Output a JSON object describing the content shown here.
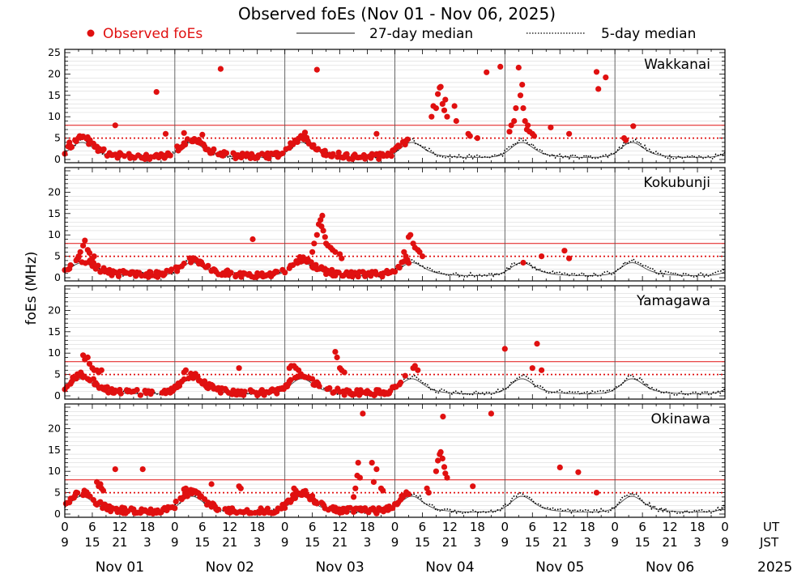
{
  "chart_data": {
    "type": "scatter",
    "title": "Observed foEs (Nov 01 - Nov 06, 2025)",
    "ylabel": "foEs (MHz)",
    "ylim": [
      0,
      25
    ],
    "yticks": [
      0,
      5,
      10,
      15,
      20,
      25
    ],
    "year": "2025",
    "legend": {
      "observed": "Observed foEs",
      "median27": "27-day median",
      "median5": "5-day median"
    },
    "x_axis": {
      "ut_label": "UT",
      "jst_label": "JST",
      "ut_hours": [
        "0",
        "6",
        "12",
        "18"
      ],
      "jst_hours": [
        "9",
        "15",
        "21",
        "3"
      ],
      "end_ut": "0",
      "end_jst": "9",
      "days": [
        "Nov 01",
        "Nov 02",
        "Nov 03",
        "Nov 04",
        "Nov 05",
        "Nov 06"
      ]
    },
    "reference_lines": {
      "red_solid": 8,
      "red_dotted": 5
    },
    "colors": {
      "observed": "#e01010",
      "reference": "#e01010",
      "median": "#000000",
      "grid": "#d9d9d9"
    },
    "stations": [
      {
        "name": "Wakkanai",
        "observed_until_hour": 75,
        "base_level": 2.6,
        "events": [
          {
            "hour": 1,
            "values": [
              4.0,
              3.0
            ]
          },
          {
            "hour": 5,
            "values": [
              5.2
            ]
          },
          {
            "hour": 11,
            "values": [
              8.0
            ]
          },
          {
            "hour": 20,
            "values": [
              15.8
            ]
          },
          {
            "hour": 22,
            "values": [
              6.0
            ]
          },
          {
            "hour": 26,
            "values": [
              6.2
            ]
          },
          {
            "hour": 30,
            "values": [
              5.8
            ]
          },
          {
            "hour": 34,
            "values": [
              21.2
            ]
          },
          {
            "hour": 52,
            "values": [
              5.5,
              6.3
            ]
          },
          {
            "hour": 55,
            "values": [
              21.0
            ]
          },
          {
            "hour": 68,
            "values": [
              6.0
            ]
          },
          {
            "hour": 80,
            "values": [
              10.0,
              12.5
            ]
          },
          {
            "hour": 81,
            "values": [
              12.0,
              15.3,
              16.8
            ]
          },
          {
            "hour": 82,
            "values": [
              17.0,
              13.0,
              11.5
            ]
          },
          {
            "hour": 83,
            "values": [
              14.0,
              10.0
            ]
          },
          {
            "hour": 85,
            "values": [
              12.5,
              9.0
            ]
          },
          {
            "hour": 88,
            "values": [
              6.0,
              5.5
            ]
          },
          {
            "hour": 90,
            "values": [
              5.0
            ]
          },
          {
            "hour": 92,
            "values": [
              20.4
            ]
          },
          {
            "hour": 95,
            "values": [
              21.7
            ]
          },
          {
            "hour": 97,
            "values": [
              6.5,
              8.0
            ]
          },
          {
            "hour": 98,
            "values": [
              9.0,
              12.0
            ]
          },
          {
            "hour": 99,
            "values": [
              21.5,
              15.0,
              17.5
            ]
          },
          {
            "hour": 100,
            "values": [
              12.0,
              9.0,
              7.0
            ]
          },
          {
            "hour": 101,
            "values": [
              8.0,
              6.5
            ]
          },
          {
            "hour": 102,
            "values": [
              6.0,
              5.5
            ]
          },
          {
            "hour": 106,
            "values": [
              7.5
            ]
          },
          {
            "hour": 110,
            "values": [
              6.0
            ]
          },
          {
            "hour": 116,
            "values": [
              20.5,
              16.5
            ]
          },
          {
            "hour": 118,
            "values": [
              19.2
            ]
          },
          {
            "hour": 122,
            "values": [
              5.0,
              4.5
            ]
          },
          {
            "hour": 124,
            "values": [
              7.8
            ]
          }
        ]
      },
      {
        "name": "Kokubunji",
        "observed_until_hour": 75,
        "base_level": 2.0,
        "events": [
          {
            "hour": 3,
            "values": [
              5.0,
              6.0
            ]
          },
          {
            "hour": 4,
            "values": [
              7.5,
              8.7
            ]
          },
          {
            "hour": 5,
            "values": [
              6.5,
              5.8
            ]
          },
          {
            "hour": 6,
            "values": [
              4.5,
              5.0
            ]
          },
          {
            "hour": 41,
            "values": [
              9.0
            ]
          },
          {
            "hour": 54,
            "values": [
              6.0,
              8.0
            ]
          },
          {
            "hour": 55,
            "values": [
              10.0,
              12.5,
              13.5,
              14.5
            ]
          },
          {
            "hour": 56,
            "values": [
              12.0,
              11.0,
              9.5
            ]
          },
          {
            "hour": 57,
            "values": [
              8.0,
              7.5
            ]
          },
          {
            "hour": 58,
            "values": [
              7.0,
              6.5
            ]
          },
          {
            "hour": 59,
            "values": [
              6.0
            ]
          },
          {
            "hour": 60,
            "values": [
              5.5,
              4.5
            ]
          },
          {
            "hour": 74,
            "values": [
              6.0,
              5.0
            ]
          },
          {
            "hour": 75,
            "values": [
              9.5,
              10.0
            ]
          },
          {
            "hour": 76,
            "values": [
              8.0,
              7.0
            ]
          },
          {
            "hour": 77,
            "values": [
              6.5,
              6.0
            ]
          },
          {
            "hour": 78,
            "values": [
              5.0
            ]
          },
          {
            "hour": 100,
            "values": [
              3.5
            ]
          },
          {
            "hour": 104,
            "values": [
              5.0
            ]
          },
          {
            "hour": 109,
            "values": [
              6.3
            ]
          },
          {
            "hour": 110,
            "values": [
              4.5
            ]
          }
        ]
      },
      {
        "name": "Yamagawa",
        "observed_until_hour": 75,
        "base_level": 2.6,
        "events": [
          {
            "hour": 4,
            "values": [
              9.5,
              8.5
            ]
          },
          {
            "hour": 5,
            "values": [
              9.0,
              7.5
            ]
          },
          {
            "hour": 6,
            "values": [
              6.5,
              6.0
            ]
          },
          {
            "hour": 7,
            "values": [
              6.0,
              5.5
            ]
          },
          {
            "hour": 8,
            "values": [
              6.0
            ]
          },
          {
            "hour": 26,
            "values": [
              5.5,
              6.0
            ]
          },
          {
            "hour": 28,
            "values": [
              5.0
            ]
          },
          {
            "hour": 38,
            "values": [
              6.5
            ]
          },
          {
            "hour": 49,
            "values": [
              6.5,
              7.0
            ]
          },
          {
            "hour": 50,
            "values": [
              7.0,
              6.5
            ]
          },
          {
            "hour": 51,
            "values": [
              6.0
            ]
          },
          {
            "hour": 59,
            "values": [
              10.3,
              9.0
            ]
          },
          {
            "hour": 60,
            "values": [
              6.5,
              6.0
            ]
          },
          {
            "hour": 61,
            "values": [
              5.5
            ]
          },
          {
            "hour": 76,
            "values": [
              6.5,
              7.0
            ]
          },
          {
            "hour": 77,
            "values": [
              6.0
            ]
          },
          {
            "hour": 96,
            "values": [
              11.0
            ]
          },
          {
            "hour": 103,
            "values": [
              12.2
            ]
          },
          {
            "hour": 102,
            "values": [
              6.5
            ]
          },
          {
            "hour": 104,
            "values": [
              6.0
            ]
          }
        ]
      },
      {
        "name": "Okinawa",
        "observed_until_hour": 75,
        "base_level": 2.8,
        "events": [
          {
            "hour": 7,
            "values": [
              7.5,
              6.5,
              7.0
            ]
          },
          {
            "hour": 8,
            "values": [
              6.0,
              5.5
            ]
          },
          {
            "hour": 11,
            "values": [
              10.5
            ]
          },
          {
            "hour": 17,
            "values": [
              10.5
            ]
          },
          {
            "hour": 26,
            "values": [
              5.8,
              6.0
            ]
          },
          {
            "hour": 28,
            "values": [
              5.5
            ]
          },
          {
            "hour": 32,
            "values": [
              7.0
            ]
          },
          {
            "hour": 38,
            "values": [
              6.5,
              6.0
            ]
          },
          {
            "hour": 50,
            "values": [
              6.0,
              5.5
            ]
          },
          {
            "hour": 63,
            "values": [
              4.0,
              6.0,
              9.0
            ]
          },
          {
            "hour": 64,
            "values": [
              12.0,
              8.5
            ]
          },
          {
            "hour": 65,
            "values": [
              23.5
            ]
          },
          {
            "hour": 67,
            "values": [
              12.0,
              7.5
            ]
          },
          {
            "hour": 68,
            "values": [
              10.5
            ]
          },
          {
            "hour": 69,
            "values": [
              6.0,
              5.5
            ]
          },
          {
            "hour": 79,
            "values": [
              6.0,
              5.0
            ]
          },
          {
            "hour": 81,
            "values": [
              10.0,
              12.5,
              14.0
            ]
          },
          {
            "hour": 82,
            "values": [
              14.5,
              13.0,
              11.0
            ]
          },
          {
            "hour": 82.5,
            "values": [
              22.8
            ]
          },
          {
            "hour": 83,
            "values": [
              9.5,
              8.5
            ]
          },
          {
            "hour": 89,
            "values": [
              6.5
            ]
          },
          {
            "hour": 93,
            "values": [
              23.5
            ]
          },
          {
            "hour": 108,
            "values": [
              10.9
            ]
          },
          {
            "hour": 112,
            "values": [
              9.8
            ]
          },
          {
            "hour": 116,
            "values": [
              5.0
            ]
          }
        ]
      }
    ]
  }
}
